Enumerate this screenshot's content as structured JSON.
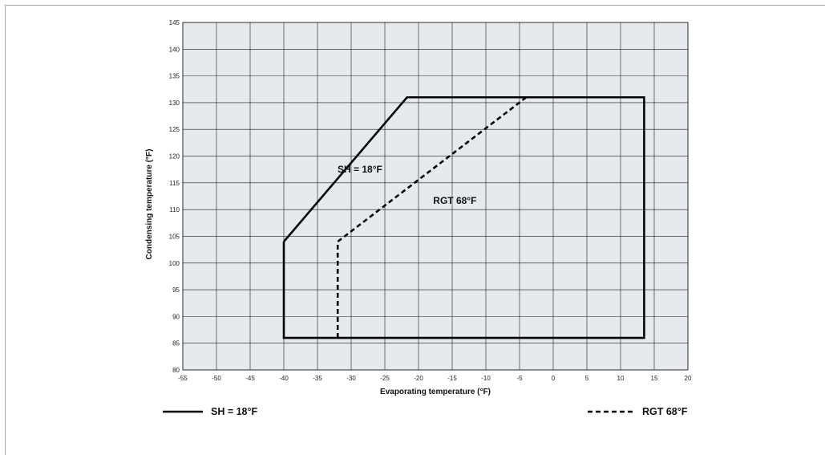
{
  "chart_data": {
    "type": "line",
    "xlabel": "Evaporating temperature (°F)",
    "ylabel": "Condensing temperature (°F)",
    "xlim": [
      -55,
      20
    ],
    "ylim": [
      80,
      145
    ],
    "xticks": [
      -55,
      -50,
      -45,
      -40,
      -35,
      -30,
      -25,
      -20,
      -15,
      -10,
      -5,
      0,
      5,
      10,
      15,
      20
    ],
    "yticks": [
      80,
      85,
      90,
      95,
      100,
      105,
      110,
      115,
      120,
      125,
      130,
      135,
      140,
      145
    ],
    "grid": true,
    "series": [
      {
        "name": "SH = 18°F",
        "style": "solid",
        "color": "#000000",
        "x": [
          -40,
          -21.7,
          13.5,
          13.5,
          -40,
          -40
        ],
        "y": [
          104,
          131,
          131,
          86,
          86,
          104
        ]
      },
      {
        "name": "RGT 68°F",
        "style": "dashed",
        "color": "#000000",
        "x": [
          -32,
          -32,
          -4
        ],
        "y": [
          86,
          104,
          131
        ]
      }
    ],
    "annotations": [
      {
        "text": "SH = 18°F",
        "x": -28.7,
        "y": 117.5
      },
      {
        "text": "RGT 68°F",
        "x": -14.6,
        "y": 111.7
      }
    ],
    "legend": {
      "position": "bottom",
      "items": [
        {
          "label": "SH = 18°F",
          "style": "solid"
        },
        {
          "label": "RGT 68°F",
          "style": "dashed"
        }
      ]
    },
    "plot_background": "#e6eaee",
    "grid_color": "#1a1a1a"
  }
}
